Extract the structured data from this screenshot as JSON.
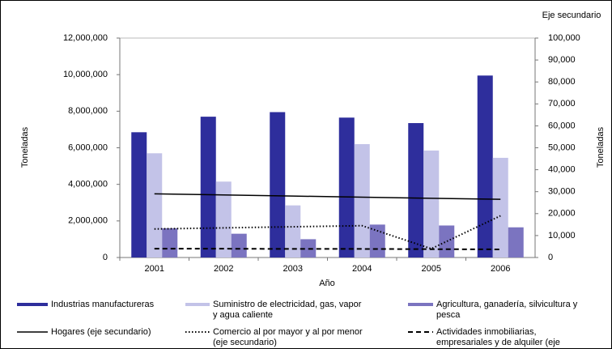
{
  "chart_data": {
    "type": "bar",
    "xlabel": "Año",
    "ylabel": "Toneladas",
    "y2label": "Toneladas",
    "y2title": "Eje secundario",
    "categories": [
      "2001",
      "2002",
      "2003",
      "2004",
      "2005",
      "2006"
    ],
    "ylim": [
      0,
      12000000
    ],
    "yticks": [
      0,
      {
        "value": 2000000,
        "label": "2,000,000"
      },
      {
        "value": 4000000,
        "label": "4,000,000"
      },
      {
        "value": 6000000,
        "label": "6,000,000"
      },
      {
        "value": 8000000,
        "label": "8,000,000"
      },
      {
        "value": 10000000,
        "label": "10,000,000"
      },
      {
        "value": 12000000,
        "label": "12,000,000"
      }
    ],
    "y2lim": [
      0,
      100000
    ],
    "y2ticks": [
      0,
      {
        "value": 10000,
        "label": "10,000"
      },
      {
        "value": 20000,
        "label": "20,000"
      },
      {
        "value": 30000,
        "label": "30,000"
      },
      {
        "value": 40000,
        "label": "40,000"
      },
      {
        "value": 50000,
        "label": "50,000"
      },
      {
        "value": 60000,
        "label": "60,000"
      },
      {
        "value": 70000,
        "label": "70,000"
      },
      {
        "value": 80000,
        "label": "80,000"
      },
      {
        "value": 90000,
        "label": "90,000"
      },
      {
        "value": 100000,
        "label": "100,000"
      }
    ],
    "series": [
      {
        "name": "Industrias manufactureras",
        "type": "bar",
        "color": "#2e2e9c",
        "values": [
          6850000,
          7700000,
          7950000,
          7650000,
          7350000,
          9950000
        ]
      },
      {
        "name": "Suministro de electricidad, gas, vapor y agua caliente",
        "type": "bar",
        "color": "#c3c3e8",
        "values": [
          5700000,
          4150000,
          2850000,
          6200000,
          5850000,
          5450000
        ]
      },
      {
        "name": "Agricultura, ganadería, silvicultura y pesca",
        "type": "bar",
        "color": "#7b74c0",
        "values": [
          1600000,
          1300000,
          1000000,
          1800000,
          1750000,
          1650000
        ]
      },
      {
        "name": "Hogares (eje secundario)",
        "type": "line",
        "axis": "y2",
        "color": "#000000",
        "dash": "solid",
        "values": [
          29000,
          28500,
          28000,
          27500,
          27000,
          26500
        ]
      },
      {
        "name": "Comercio al por mayor y al por menor (eje secundario)",
        "type": "line",
        "axis": "y2",
        "color": "#000000",
        "dash": "dotted",
        "values": [
          13000,
          13500,
          14000,
          14500,
          4000,
          19000
        ]
      },
      {
        "name": "Actividades inmobiliarias, empresariales y de alquiler (eje secundario)",
        "type": "line",
        "axis": "y2",
        "color": "#000000",
        "dash": "dashed",
        "values": [
          4000,
          4000,
          3900,
          3900,
          3800,
          3700
        ]
      }
    ]
  }
}
